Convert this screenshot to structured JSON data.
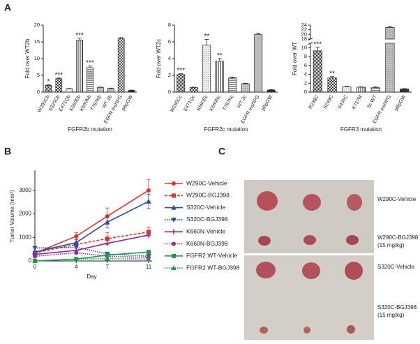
{
  "panel_labels": [
    "A",
    "B",
    "C"
  ],
  "chart_data": [
    {
      "type": "bar",
      "y_label": "Fold over WT2b",
      "x_label": "FGFR2b mutation",
      "categories": [
        "W290Cb",
        "S320Cb",
        "E471Qb",
        "K660Eb",
        "K660Nb",
        "T787Kb",
        "WT 2b",
        "EGFR insNPG",
        "pBpGW"
      ],
      "values": [
        2,
        4,
        1,
        15.5,
        7.3,
        1.4,
        1.1,
        16,
        0.5
      ],
      "errors": [
        0.2,
        0.2,
        0.1,
        0.6,
        0.5,
        0.1,
        0.1,
        0.3,
        0.1
      ],
      "annotations": [
        "*",
        "***",
        null,
        "***",
        "***",
        null,
        null,
        null,
        null
      ],
      "ylim": [
        0,
        20
      ],
      "yticks": [
        0,
        5,
        10,
        15,
        20
      ]
    },
    {
      "type": "bar",
      "y_label": "Fold over WT2c",
      "x_label": "FGFR2c mutation",
      "categories": [
        "W290Cc",
        "E471Qc",
        "K660Ec",
        "K660Nc",
        "T787Kc",
        "WT 2c",
        "EGFR insNPG",
        "pBpGW"
      ],
      "values": [
        2.1,
        0.55,
        5.6,
        3.7,
        1.7,
        1.0,
        6.9,
        0.25
      ],
      "errors": [
        0.1,
        0.05,
        0.7,
        0.3,
        0.1,
        0.05,
        0.15,
        0.05
      ],
      "annotations": [
        "***",
        null,
        "**",
        "**",
        null,
        null,
        null,
        null
      ],
      "ylim": [
        0,
        8
      ],
      "yticks": [
        0,
        2,
        4,
        6,
        8
      ]
    },
    {
      "type": "bar",
      "y_label": "Fold over WT",
      "x_label": "FGFR3 mutation",
      "categories": [
        "R248C",
        "S249C",
        "S435C",
        "K717M",
        "3c WT",
        "EGFR insNPG",
        "pBpGW"
      ],
      "values": [
        9.3,
        3.2,
        1.2,
        1.1,
        1.0,
        23,
        0.7
      ],
      "errors": [
        0.8,
        0.3,
        0.1,
        0.1,
        0.2,
        0.5,
        0.1
      ],
      "annotations": [
        "***",
        "**",
        null,
        null,
        null,
        null,
        null
      ],
      "ylim": [
        0,
        24
      ],
      "axis_break": [
        11,
        18
      ],
      "yticks": [
        0,
        2,
        4,
        6,
        8,
        10,
        18,
        20,
        22,
        24
      ]
    },
    {
      "type": "line",
      "x_label": "Day",
      "y_label": "Tumor Volume (mm³)",
      "x": [
        0,
        4,
        7,
        11
      ],
      "xlim": [
        0,
        11
      ],
      "xticks": [
        0,
        4,
        7,
        11
      ],
      "ylim": [
        0,
        3500
      ],
      "yticks": [
        0,
        1000,
        2000,
        3000
      ],
      "series": [
        {
          "name": "W290C-Vehicle",
          "color": "#e8302a",
          "dash": "solid",
          "marker": "circle",
          "values": [
            330,
            1050,
            1900,
            3000
          ],
          "errors": [
            50,
            150,
            350,
            450
          ]
        },
        {
          "name": "W290C-BGJ398",
          "color": "#e8302a",
          "dash": "dashed",
          "marker": "square",
          "values": [
            350,
            700,
            950,
            1230
          ],
          "errors": [
            50,
            150,
            250,
            200
          ]
        },
        {
          "name": "S320C-Vehicle",
          "color": "#2c4fa0",
          "dash": "solid",
          "marker": "triangle",
          "values": [
            380,
            780,
            1650,
            2530
          ],
          "errors": [
            50,
            150,
            250,
            300
          ]
        },
        {
          "name": "S320C-BGJ398",
          "color": "#2c4fa0",
          "dash": "dotted",
          "marker": "triangle-down",
          "values": [
            550,
            580,
            300,
            200
          ]
        },
        {
          "name": "K660N-Vehicle",
          "color": "#8a2d9c",
          "dash": "solid",
          "marker": "plus",
          "values": [
            280,
            450,
            750,
            1100
          ]
        },
        {
          "name": "K660N-BGJ398",
          "color": "#8a2d9c",
          "dash": "dotted",
          "marker": "circle",
          "values": [
            200,
            350,
            200,
            150
          ]
        },
        {
          "name": "FGFR2 WT-Vehicle",
          "color": "#1e9a4a",
          "dash": "solid",
          "marker": "square",
          "values": [
            0,
            80,
            250,
            380
          ]
        },
        {
          "name": "FGFR2 WT-BGJ398",
          "color": "#1e9a4a",
          "dash": "dotted",
          "marker": "triangle",
          "values": [
            0,
            80,
            100,
            80
          ]
        }
      ]
    }
  ],
  "photo": {
    "labels": [
      {
        "name": "W290C-Vehicle"
      },
      {
        "name": "W290C-BGJ398",
        "dose": "(15 mg/kg)"
      },
      {
        "name": "S320C-Vehicle"
      },
      {
        "name": "S320C-BGJ398",
        "dose": "(15 mg/kg)"
      }
    ]
  }
}
